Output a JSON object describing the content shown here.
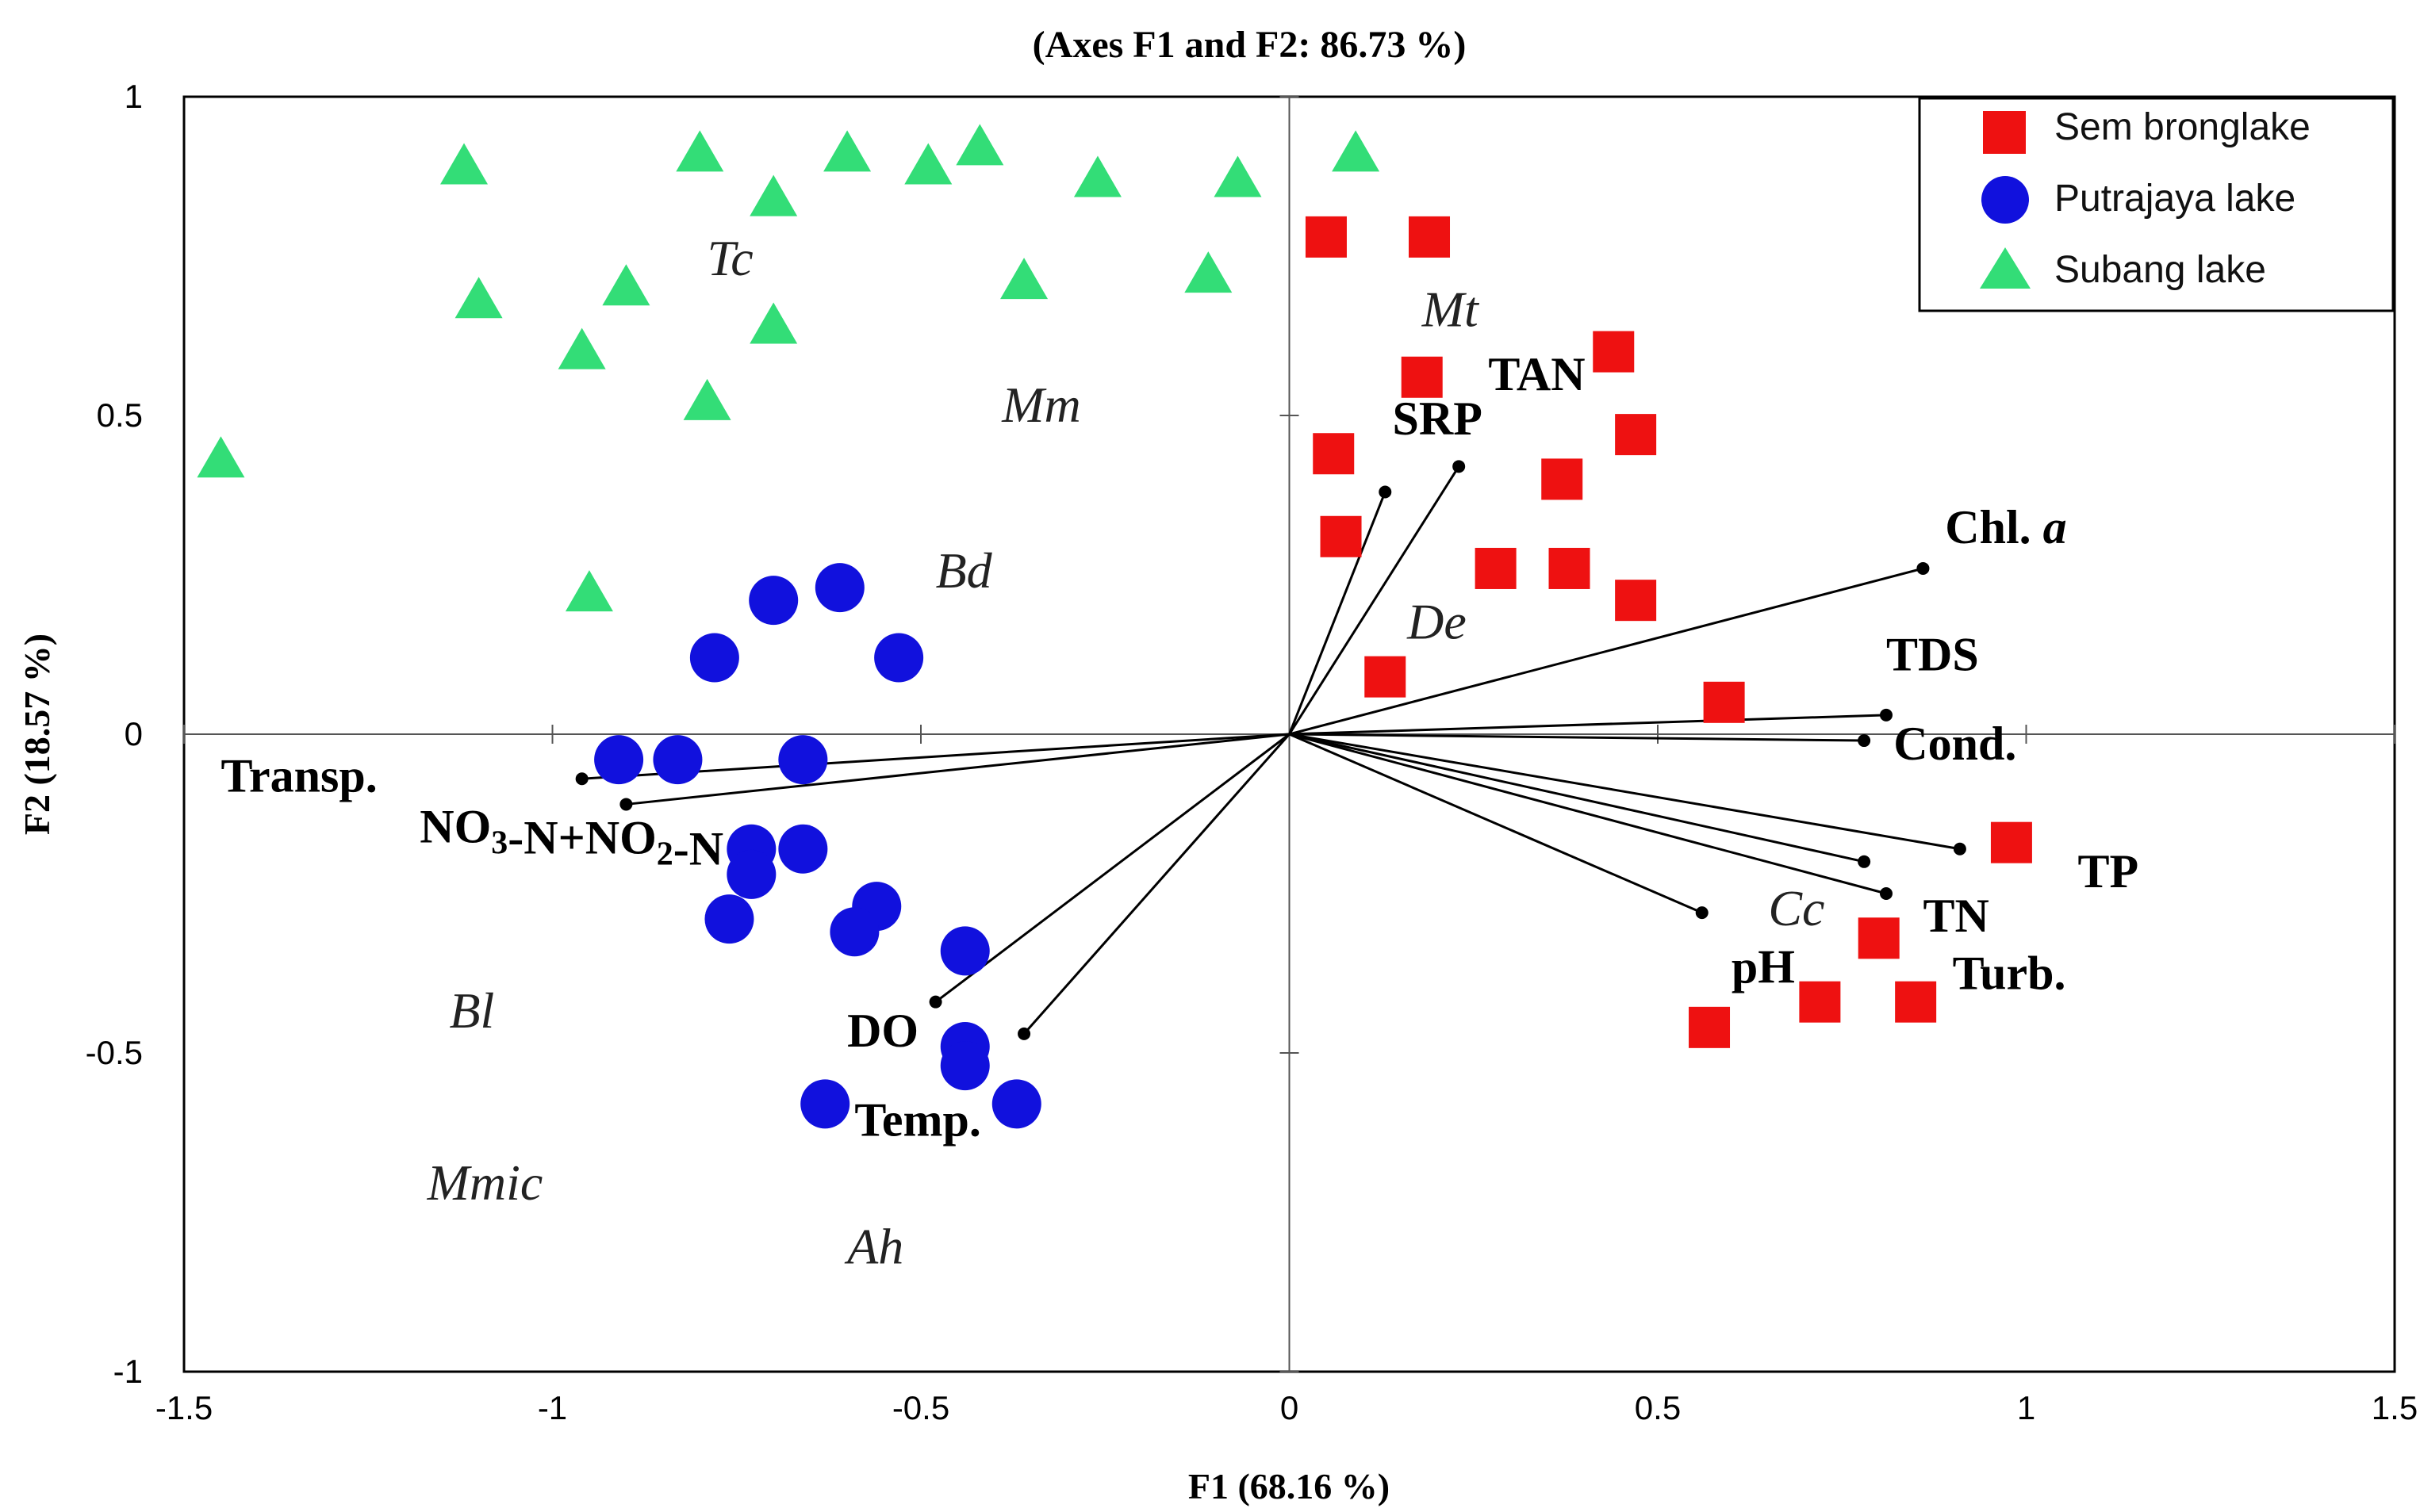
{
  "chart_data": {
    "type": "scatter",
    "title": "(Axes F1 and F2: 86.73 %)",
    "xlabel": "F1 (68.16 %)",
    "ylabel": "F2 (18.57 %)",
    "xlim": [
      -1.5,
      1.5
    ],
    "ylim": [
      -1,
      1
    ],
    "xticks": [
      -1.5,
      -1,
      -0.5,
      0,
      0.5,
      1,
      1.5
    ],
    "yticks": [
      -1,
      -0.5,
      0,
      0.5,
      1
    ],
    "xtick_labels": [
      "-1.5",
      "-1",
      "-0.5",
      "0",
      "0.5",
      "1",
      "1.5"
    ],
    "ytick_labels": [
      "-1",
      "-0.5",
      "0",
      "0.5",
      "1"
    ],
    "legend_position": "top-right",
    "series": [
      {
        "name": "Sembrong lake",
        "legend_label": "Sem bronglake",
        "marker": "square",
        "color": "#ee1111",
        "points": [
          [
            0.05,
            0.78
          ],
          [
            0.19,
            0.78
          ],
          [
            0.44,
            0.6
          ],
          [
            0.18,
            0.56
          ],
          [
            0.47,
            0.47
          ],
          [
            0.37,
            0.4
          ],
          [
            0.06,
            0.44
          ],
          [
            0.07,
            0.31
          ],
          [
            0.28,
            0.26
          ],
          [
            0.38,
            0.26
          ],
          [
            0.47,
            0.21
          ],
          [
            0.13,
            0.09
          ],
          [
            0.59,
            0.05
          ],
          [
            0.98,
            -0.17
          ],
          [
            0.8,
            -0.32
          ],
          [
            0.57,
            -0.46
          ],
          [
            0.72,
            -0.42
          ],
          [
            0.85,
            -0.42
          ]
        ]
      },
      {
        "name": "Putrajaya lake",
        "legend_label": "Putrajaya lake",
        "marker": "circle",
        "color": "#1111dd",
        "points": [
          [
            -0.7,
            0.21
          ],
          [
            -0.61,
            0.23
          ],
          [
            -0.78,
            0.12
          ],
          [
            -0.53,
            0.12
          ],
          [
            -0.91,
            -0.04
          ],
          [
            -0.83,
            -0.04
          ],
          [
            -0.66,
            -0.04
          ],
          [
            -0.73,
            -0.18
          ],
          [
            -0.66,
            -0.18
          ],
          [
            -0.73,
            -0.22
          ],
          [
            -0.76,
            -0.29
          ],
          [
            -0.56,
            -0.27
          ],
          [
            -0.59,
            -0.31
          ],
          [
            -0.44,
            -0.34
          ],
          [
            -0.44,
            -0.49
          ],
          [
            -0.44,
            -0.52
          ],
          [
            -0.63,
            -0.58
          ],
          [
            -0.37,
            -0.58
          ]
        ]
      },
      {
        "name": "Subang lake",
        "legend_label": "Subang lake",
        "marker": "triangle",
        "color": "#33dd77",
        "points": [
          [
            -1.12,
            0.89
          ],
          [
            -0.8,
            0.91
          ],
          [
            -0.6,
            0.91
          ],
          [
            -0.49,
            0.89
          ],
          [
            -0.42,
            0.92
          ],
          [
            -0.7,
            0.84
          ],
          [
            -0.26,
            0.87
          ],
          [
            -0.07,
            0.87
          ],
          [
            0.09,
            0.91
          ],
          [
            -1.1,
            0.68
          ],
          [
            -0.9,
            0.7
          ],
          [
            -0.36,
            0.71
          ],
          [
            -0.11,
            0.72
          ],
          [
            -0.96,
            0.6
          ],
          [
            -0.7,
            0.64
          ],
          [
            -0.79,
            0.52
          ],
          [
            -1.45,
            0.43
          ],
          [
            -0.95,
            0.22
          ]
        ]
      }
    ],
    "variable_vectors": [
      {
        "name": "Chl. a",
        "x": 0.86,
        "y": 0.26
      },
      {
        "name": "TDS",
        "x": 0.81,
        "y": 0.03
      },
      {
        "name": "Cond.",
        "x": 0.78,
        "y": -0.01
      },
      {
        "name": "TP",
        "x": 0.91,
        "y": -0.18
      },
      {
        "name": "TN",
        "x": 0.81,
        "y": -0.25
      },
      {
        "name": "Turb.",
        "x": 0.78,
        "y": -0.2
      },
      {
        "name": "pH",
        "x": 0.56,
        "y": -0.28
      },
      {
        "name": "TAN",
        "x": 0.23,
        "y": 0.42
      },
      {
        "name": "SRP",
        "x": 0.13,
        "y": 0.38
      },
      {
        "name": "Transp.",
        "x": -0.96,
        "y": -0.07
      },
      {
        "name": "NO3-N+NO2-N",
        "x": -0.9,
        "y": -0.11
      },
      {
        "name": "DO",
        "x": -0.48,
        "y": -0.42
      },
      {
        "name": "Temp.",
        "x": -0.36,
        "y": -0.47
      }
    ],
    "vector_labels": [
      {
        "text": "Chl. ",
        "italic_suffix": "a",
        "x": 0.89,
        "y": 0.3
      },
      {
        "text": "TDS",
        "x": 0.81,
        "y": 0.1
      },
      {
        "text": "Cond.",
        "x": 0.82,
        "y": -0.04
      },
      {
        "text": "TP",
        "x": 1.07,
        "y": -0.24
      },
      {
        "text": "TN",
        "x": 0.86,
        "y": -0.31
      },
      {
        "text": "Turb.",
        "x": 0.9,
        "y": -0.4
      },
      {
        "text": "pH",
        "x": 0.6,
        "y": -0.39
      },
      {
        "text": "TAN",
        "x": 0.27,
        "y": 0.54
      },
      {
        "text": "SRP",
        "x": 0.14,
        "y": 0.47
      },
      {
        "text": "Transp.",
        "x": -1.45,
        "y": -0.09
      },
      {
        "text": "NO3-N+NO2-N",
        "x": -1.18,
        "y": -0.17
      },
      {
        "text": "DO",
        "x": -0.6,
        "y": -0.49
      },
      {
        "text": "Temp.",
        "x": -0.59,
        "y": -0.63
      }
    ],
    "species_labels": [
      {
        "text": "Tc",
        "x": -0.79,
        "y": 0.72
      },
      {
        "text": "Mt",
        "x": 0.18,
        "y": 0.64
      },
      {
        "text": "Mm",
        "x": -0.39,
        "y": 0.49
      },
      {
        "text": "Bd",
        "x": -0.48,
        "y": 0.23
      },
      {
        "text": "De",
        "x": 0.16,
        "y": 0.15
      },
      {
        "text": "Cc",
        "x": 0.65,
        "y": -0.3
      },
      {
        "text": "Bl",
        "x": -1.14,
        "y": -0.46
      },
      {
        "text": "Mmic",
        "x": -1.17,
        "y": -0.73
      },
      {
        "text": "Ah",
        "x": -0.6,
        "y": -0.83
      }
    ]
  }
}
